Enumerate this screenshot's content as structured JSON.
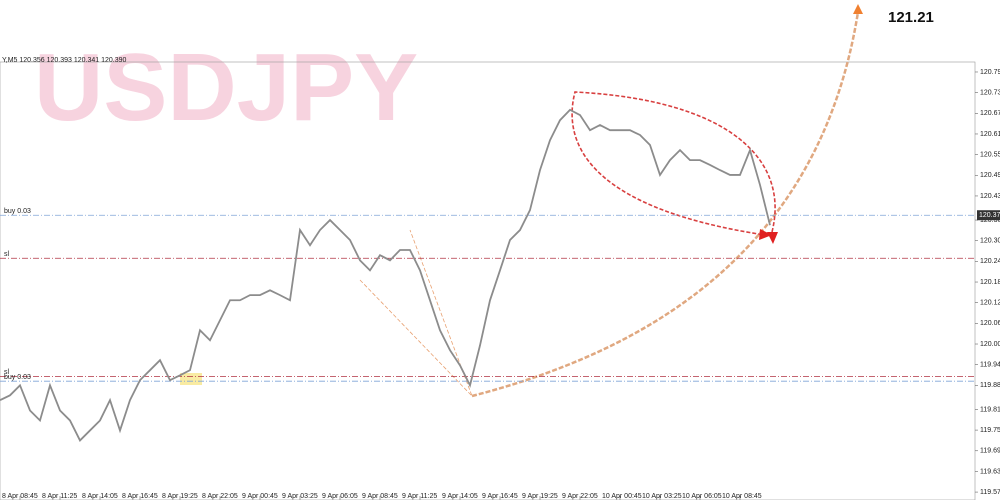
{
  "chart_data": {
    "type": "line",
    "watermark": "USDJPY",
    "header": "Y,M5  120.356 120.393 120.341 120.390",
    "annotation": "121.21",
    "price_label": "120.37",
    "color": "#8c8c8c",
    "categories": [
      null,
      null,
      "8 Apr 08:45",
      null,
      null,
      null,
      "8 Apr 11:25",
      null,
      null,
      null,
      "8 Apr 14:05",
      null,
      null,
      null,
      "8 Apr 16:45",
      null,
      null,
      null,
      "8 Apr 19:25",
      null,
      null,
      null,
      "8 Apr 22:05",
      null,
      null,
      null,
      "9 Apr 00:45",
      null,
      null,
      null,
      "9 Apr 03:25",
      null,
      null,
      null,
      "9 Apr 06:05",
      null,
      null,
      null,
      "9 Apr 08:45",
      null,
      null,
      null,
      "9 Apr 11:25",
      null,
      null,
      null,
      "9 Apr 14:05",
      null,
      null,
      null,
      "9 Apr 16:45",
      null,
      null,
      null,
      "9 Apr 19:25",
      null,
      null,
      null,
      "9 Apr 22:05",
      null,
      null,
      null,
      "10 Apr 00:45",
      null,
      null,
      null,
      "10 Apr 03:25",
      null,
      null,
      null,
      "10 Apr 06:05",
      null,
      null,
      null,
      "10 Apr 08:45",
      null,
      null,
      null
    ],
    "values": [
      119.837,
      119.851,
      119.88,
      119.807,
      119.778,
      119.88,
      119.807,
      119.778,
      119.72,
      119.749,
      119.778,
      119.837,
      119.749,
      119.837,
      119.895,
      119.924,
      119.953,
      119.895,
      119.909,
      119.924,
      120.04,
      120.011,
      120.069,
      120.127,
      120.127,
      120.142,
      120.142,
      120.156,
      120.142,
      120.127,
      120.331,
      120.287,
      120.331,
      120.36,
      120.331,
      120.302,
      120.243,
      120.214,
      120.258,
      120.243,
      120.273,
      120.273,
      120.214,
      120.127,
      120.04,
      119.982,
      119.938,
      119.88,
      119.996,
      120.127,
      120.214,
      120.302,
      120.331,
      120.389,
      120.505,
      120.592,
      120.65,
      120.68,
      120.665,
      120.621,
      120.636,
      120.621,
      120.621,
      120.621,
      120.607,
      120.578,
      120.491,
      120.534,
      120.563,
      120.534,
      120.534,
      120.52,
      120.505,
      120.491,
      120.491,
      120.563,
      120.462,
      120.345
    ],
    "ylim": [
      119.547,
      120.819
    ],
    "yticks": [
      {
        "value": 120.79,
        "label": "120.79"
      },
      {
        "value": 120.73,
        "label": "120.73"
      },
      {
        "value": 120.67,
        "label": "120.67"
      },
      {
        "value": 120.61,
        "label": "120.61"
      },
      {
        "value": 120.55,
        "label": "120.55"
      },
      {
        "value": 120.49,
        "label": "120.49"
      },
      {
        "value": 120.43,
        "label": "120.43"
      },
      {
        "value": 120.36,
        "label": "120.36"
      },
      {
        "value": 120.3,
        "label": "120.30"
      },
      {
        "value": 120.24,
        "label": "120.24"
      },
      {
        "value": 120.18,
        "label": "120.18"
      },
      {
        "value": 120.12,
        "label": "120.12"
      },
      {
        "value": 120.06,
        "label": "120.06"
      },
      {
        "value": 120.0,
        "label": "120.00"
      },
      {
        "value": 119.94,
        "label": "119.94"
      },
      {
        "value": 119.88,
        "label": "119.88"
      },
      {
        "value": 119.81,
        "label": "119.81"
      },
      {
        "value": 119.75,
        "label": "119.75"
      },
      {
        "value": 119.69,
        "label": "119.69"
      },
      {
        "value": 119.63,
        "label": "119.63"
      },
      {
        "value": 119.57,
        "label": "119.57"
      }
    ],
    "levels": [
      {
        "label": "buy 0.03",
        "value": 120.374,
        "color": "#7fa3d8"
      },
      {
        "label": "sl",
        "value": 120.249,
        "color": "#b03040"
      },
      {
        "label": "sl",
        "value": 119.906,
        "color": "#b03040"
      },
      {
        "label": "buy 0.03",
        "value": 119.892,
        "color": "#7fa3d8"
      }
    ]
  }
}
